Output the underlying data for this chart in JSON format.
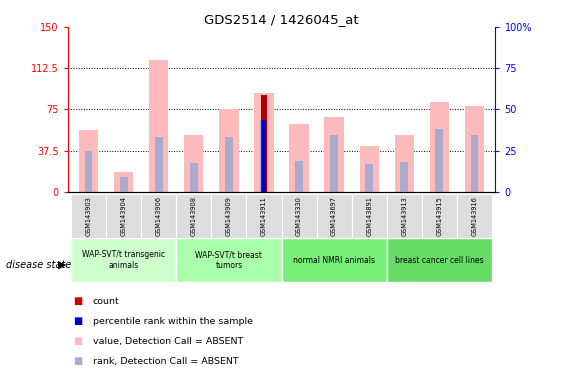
{
  "title": "GDS2514 / 1426045_at",
  "samples": [
    "GSM143903",
    "GSM143904",
    "GSM143906",
    "GSM143908",
    "GSM143909",
    "GSM143911",
    "GSM143330",
    "GSM143697",
    "GSM143891",
    "GSM143913",
    "GSM143915",
    "GSM143916"
  ],
  "groups": [
    {
      "label": "WAP-SVT/t transgenic\nanimals",
      "samples_idx": [
        0,
        1,
        2
      ],
      "color": "#ccffcc"
    },
    {
      "label": "WAP-SVT/t breast\ntumors",
      "samples_idx": [
        3,
        4,
        5
      ],
      "color": "#aaffaa"
    },
    {
      "label": "normal NMRI animals",
      "samples_idx": [
        6,
        7,
        8
      ],
      "color": "#77ee77"
    },
    {
      "label": "breast cancer cell lines",
      "samples_idx": [
        9,
        10,
        11
      ],
      "color": "#66dd66"
    }
  ],
  "value_absent": [
    56,
    18,
    120,
    52,
    75,
    90,
    62,
    68,
    42,
    52,
    82,
    78
  ],
  "rank_absent": [
    37,
    14,
    50,
    26,
    50,
    65,
    28,
    52,
    25,
    27,
    57,
    52
  ],
  "count_val": [
    0,
    0,
    0,
    0,
    0,
    88,
    0,
    0,
    0,
    0,
    0,
    0
  ],
  "percentile_rank": [
    0,
    0,
    0,
    0,
    0,
    65,
    0,
    0,
    0,
    0,
    0,
    0
  ],
  "ylim_left": [
    0,
    150
  ],
  "ylim_right": [
    0,
    100
  ],
  "yticks_left": [
    0,
    37.5,
    75,
    112.5,
    150
  ],
  "yticks_right": [
    0,
    25,
    50,
    75,
    100
  ],
  "color_value_absent": "#ffbbbb",
  "color_rank_absent": "#aaaacc",
  "color_count": "#aa0000",
  "color_percentile": "#0000cc",
  "legend_items": [
    {
      "color": "#cc0000",
      "label": "count"
    },
    {
      "color": "#0000cc",
      "label": "percentile rank within the sample"
    },
    {
      "color": "#ffbbbb",
      "label": "value, Detection Call = ABSENT"
    },
    {
      "color": "#aaaacc",
      "label": "rank, Detection Call = ABSENT"
    }
  ]
}
